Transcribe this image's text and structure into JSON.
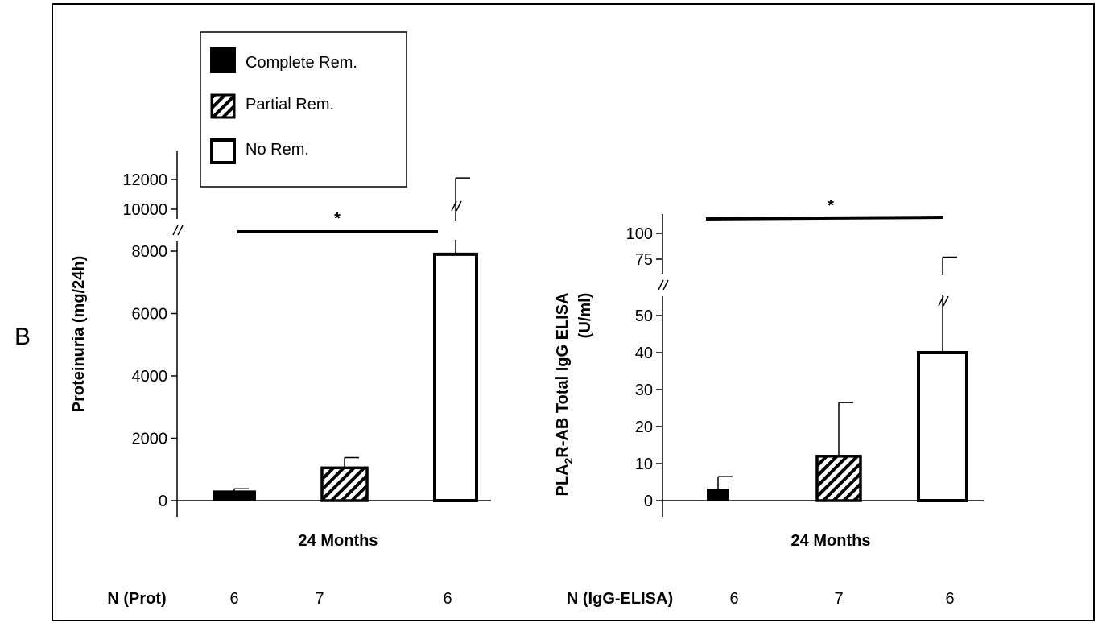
{
  "panel_label": "B",
  "legend": {
    "items": [
      {
        "label": "Complete Rem.",
        "pattern": "solid"
      },
      {
        "label": "Partial Rem.",
        "pattern": "hatched"
      },
      {
        "label": "No Rem.",
        "pattern": "open"
      }
    ]
  },
  "colors": {
    "ink": "#000000",
    "background": "#ffffff"
  },
  "chart_data": [
    {
      "type": "bar",
      "ylabel": "Proteinuria (mg/24h)",
      "xlabel": "24 Months",
      "axis_break": "between 8000 and 10000",
      "ylim": [
        0,
        12000
      ],
      "yticks": [
        "0",
        "2000",
        "4000",
        "6000",
        "8000",
        "10000",
        "12000"
      ],
      "categories": [
        "Complete Rem.",
        "Partial Rem.",
        "No Rem."
      ],
      "values": [
        300,
        1050,
        7900
      ],
      "error_upper": [
        380,
        1380,
        12100
      ],
      "significance": {
        "label": "*",
        "from": "Complete Rem.",
        "to": "No Rem."
      },
      "n_label": "N (Prot)",
      "n": [
        "6",
        "7",
        "6"
      ]
    },
    {
      "type": "bar",
      "ylabel": "PLA2R-AB Total IgG ELISA (U/ml)",
      "xlabel": "24 Months",
      "axis_break": "between 50 and 75",
      "ylim": [
        0,
        100
      ],
      "yticks": [
        "0",
        "10",
        "20",
        "30",
        "40",
        "50",
        "75",
        "100"
      ],
      "categories": [
        "Complete Rem.",
        "Partial Rem.",
        "No Rem."
      ],
      "values": [
        3,
        12,
        40
      ],
      "error_upper": [
        6.5,
        26.5,
        77
      ],
      "significance": {
        "label": "*",
        "from": "Complete Rem.",
        "to": "No Rem."
      },
      "n_label": "N (IgG-ELISA)",
      "n": [
        "6",
        "7",
        "6"
      ]
    }
  ]
}
